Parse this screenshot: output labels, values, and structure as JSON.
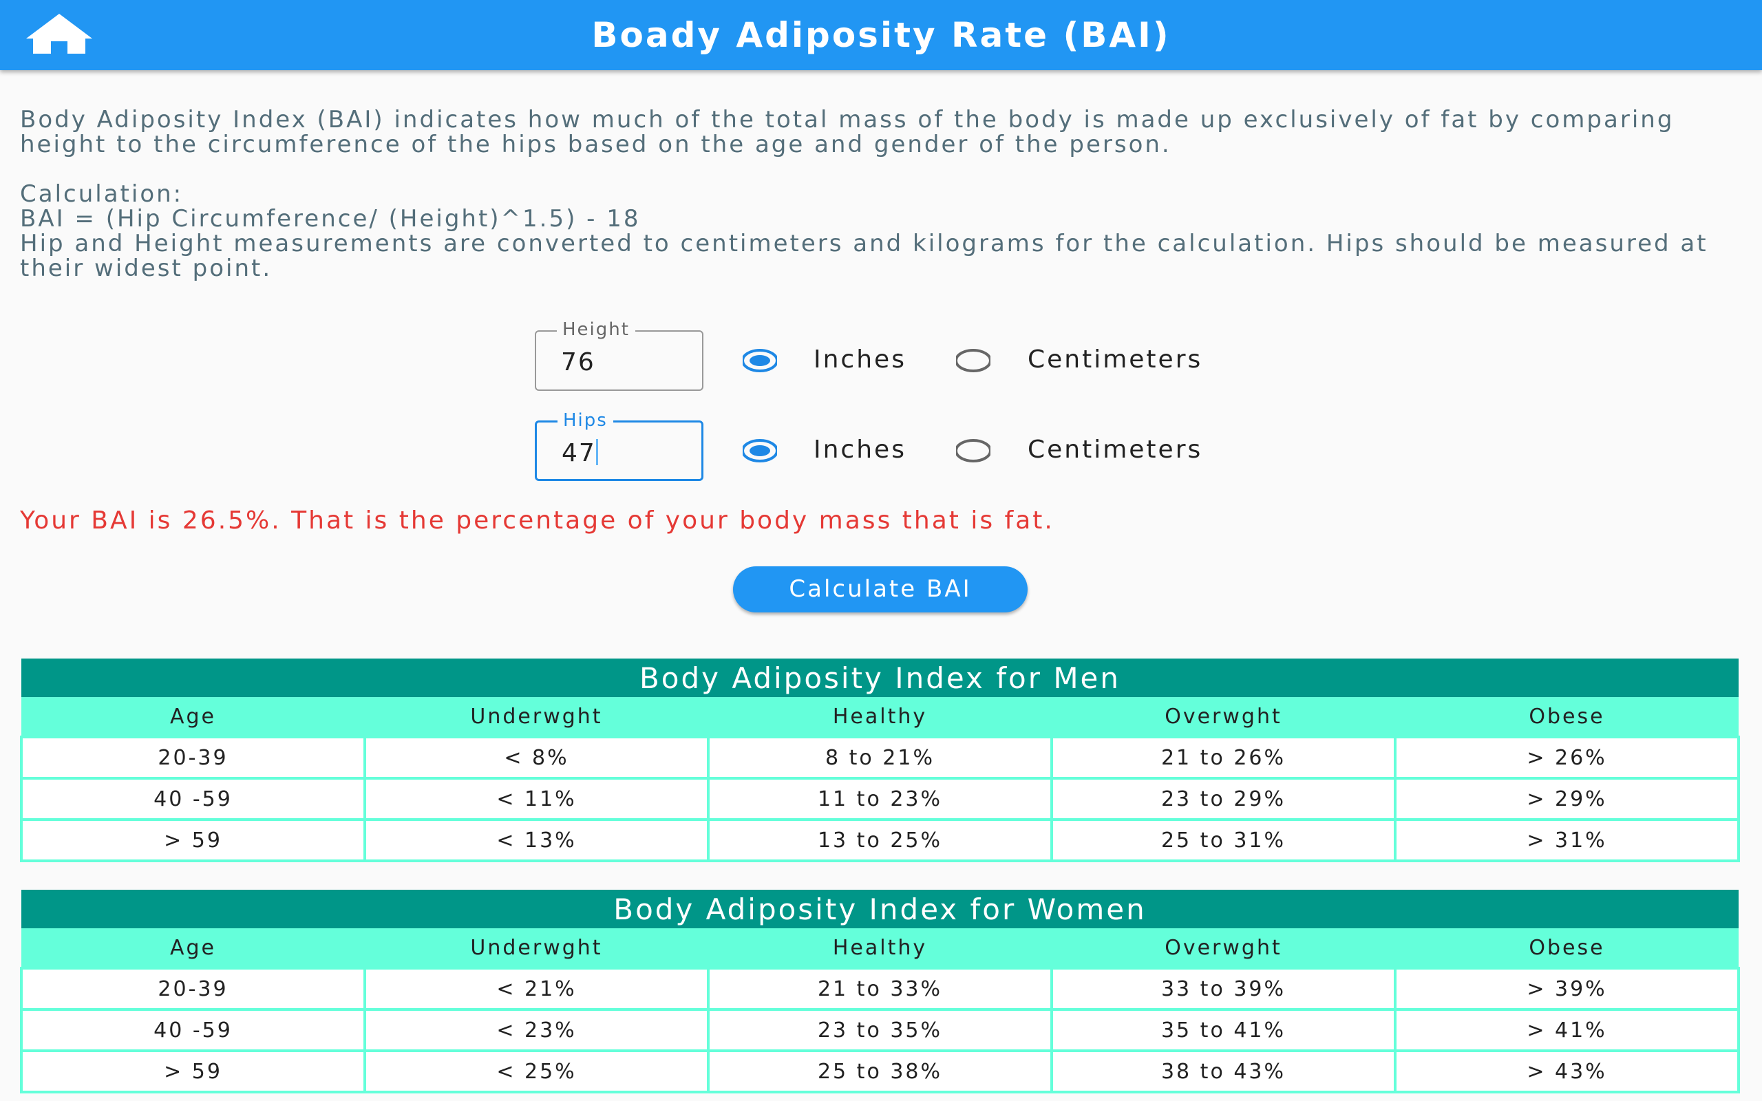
{
  "header": {
    "title": "Boady Adiposity Rate (BAI)"
  },
  "description": "Body Adiposity Index (BAI) indicates how much of the total mass of the body is made up exclusively of fat by comparing height to the circumference of the hips based on the age and gender of the person.",
  "calculation": {
    "label": "Calculation:",
    "formula": "BAI = (Hip Circumference/ (Height)^1.5) - 18",
    "note": "Hip and Height measurements are converted to centimeters and kilograms for the calculation. Hips should be measured at their widest point."
  },
  "inputs": [
    {
      "label": "Height",
      "value": "76",
      "focused": false,
      "options": [
        "Inches",
        "Centimeters"
      ],
      "selected": 0
    },
    {
      "label": "Hips",
      "value": "47",
      "focused": true,
      "options": [
        "Inches",
        "Centimeters"
      ],
      "selected": 0
    }
  ],
  "result": "Your BAI is 26.5%. That is the percentage of your body mass that is fat.",
  "button": "Calculate BAI",
  "tables": [
    {
      "title": "Body Adiposity Index for Men",
      "columns": [
        "Age",
        "Underwght",
        "Healthy",
        "Overwght",
        "Obese"
      ],
      "rows": [
        [
          "20-39",
          "< 8%",
          "8 to 21%",
          "21 to 26%",
          "> 26%"
        ],
        [
          "40 -59",
          "< 11%",
          "11 to 23%",
          "23 to 29%",
          "> 29%"
        ],
        [
          "> 59",
          "< 13%",
          "13 to 25%",
          "25 to 31%",
          "> 31%"
        ]
      ]
    },
    {
      "title": "Body Adiposity Index for Women",
      "columns": [
        "Age",
        "Underwght",
        "Healthy",
        "Overwght",
        "Obese"
      ],
      "rows": [
        [
          "20-39",
          "< 21%",
          "21 to 33%",
          "33 to 39%",
          "> 39%"
        ],
        [
          "40 -59",
          "< 23%",
          "23 to 35%",
          "35 to 41%",
          "> 41%"
        ],
        [
          "> 59",
          "< 25%",
          "25 to 38%",
          "38 to 43%",
          "> 43%"
        ]
      ]
    }
  ]
}
